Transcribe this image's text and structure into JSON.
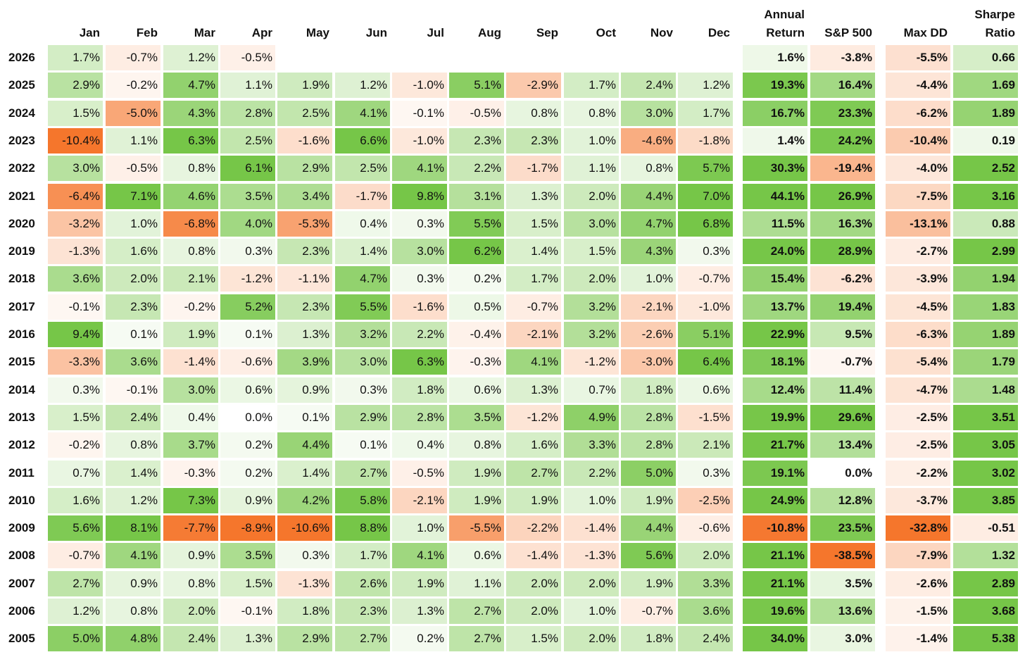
{
  "table": {
    "columns": [
      "Jan",
      "Feb",
      "Mar",
      "Apr",
      "May",
      "Jun",
      "Jul",
      "Aug",
      "Sep",
      "Oct",
      "Nov",
      "Dec",
      "Annual Return",
      "S&P 500",
      "Max DD",
      "Sharpe Ratio"
    ],
    "rows": [
      [
        "2026",
        "1.7%",
        "-0.7%",
        "1.2%",
        "-0.5%",
        null,
        null,
        null,
        null,
        null,
        null,
        null,
        null,
        "1.6%",
        "-3.8%",
        "-5.5%",
        "0.66"
      ],
      [
        "2025",
        "2.9%",
        "-0.2%",
        "4.7%",
        "1.1%",
        "1.9%",
        "1.2%",
        "-1.0%",
        "5.1%",
        "-2.9%",
        "1.7%",
        "2.4%",
        "1.2%",
        "19.3%",
        "16.4%",
        "-4.4%",
        "1.69"
      ],
      [
        "2024",
        "1.5%",
        "-5.0%",
        "4.3%",
        "2.8%",
        "2.5%",
        "4.1%",
        "-0.1%",
        "-0.5%",
        "0.8%",
        "0.8%",
        "3.0%",
        "1.7%",
        "16.7%",
        "23.3%",
        "-6.2%",
        "1.89"
      ],
      [
        "2023",
        "-10.4%",
        "1.1%",
        "6.3%",
        "2.5%",
        "-1.6%",
        "6.6%",
        "-1.0%",
        "2.3%",
        "2.3%",
        "1.0%",
        "-4.6%",
        "-1.8%",
        "1.4%",
        "24.2%",
        "-10.4%",
        "0.19"
      ],
      [
        "2022",
        "3.0%",
        "-0.5%",
        "0.8%",
        "6.1%",
        "2.9%",
        "2.5%",
        "4.1%",
        "2.2%",
        "-1.7%",
        "1.1%",
        "0.8%",
        "5.7%",
        "30.3%",
        "-19.4%",
        "-4.0%",
        "2.52"
      ],
      [
        "2021",
        "-6.4%",
        "7.1%",
        "4.6%",
        "3.5%",
        "3.4%",
        "-1.7%",
        "9.8%",
        "3.1%",
        "1.3%",
        "2.0%",
        "4.4%",
        "7.0%",
        "44.1%",
        "26.9%",
        "-7.5%",
        "3.16"
      ],
      [
        "2020",
        "-3.2%",
        "1.0%",
        "-6.8%",
        "4.0%",
        "-5.3%",
        "0.4%",
        "0.3%",
        "5.5%",
        "1.5%",
        "3.0%",
        "4.7%",
        "6.8%",
        "11.5%",
        "16.3%",
        "-13.1%",
        "0.88"
      ],
      [
        "2019",
        "-1.3%",
        "1.6%",
        "0.8%",
        "0.3%",
        "2.3%",
        "1.4%",
        "3.0%",
        "6.2%",
        "1.4%",
        "1.5%",
        "4.3%",
        "0.3%",
        "24.0%",
        "28.9%",
        "-2.7%",
        "2.99"
      ],
      [
        "2018",
        "3.6%",
        "2.0%",
        "2.1%",
        "-1.2%",
        "-1.1%",
        "4.7%",
        "0.3%",
        "0.2%",
        "1.7%",
        "2.0%",
        "1.0%",
        "-0.7%",
        "15.4%",
        "-6.2%",
        "-3.9%",
        "1.94"
      ],
      [
        "2017",
        "-0.1%",
        "2.3%",
        "-0.2%",
        "5.2%",
        "2.3%",
        "5.5%",
        "-1.6%",
        "0.5%",
        "-0.7%",
        "3.2%",
        "-2.1%",
        "-1.0%",
        "13.7%",
        "19.4%",
        "-4.5%",
        "1.83"
      ],
      [
        "2016",
        "9.4%",
        "0.1%",
        "1.9%",
        "0.1%",
        "1.3%",
        "3.2%",
        "2.2%",
        "-0.4%",
        "-2.1%",
        "3.2%",
        "-2.6%",
        "5.1%",
        "22.9%",
        "9.5%",
        "-6.3%",
        "1.89"
      ],
      [
        "2015",
        "-3.3%",
        "3.6%",
        "-1.4%",
        "-0.6%",
        "3.9%",
        "3.0%",
        "6.3%",
        "-0.3%",
        "4.1%",
        "-1.2%",
        "-3.0%",
        "6.4%",
        "18.1%",
        "-0.7%",
        "-5.4%",
        "1.79"
      ],
      [
        "2014",
        "0.3%",
        "-0.1%",
        "3.0%",
        "0.6%",
        "0.9%",
        "0.3%",
        "1.8%",
        "0.6%",
        "1.3%",
        "0.7%",
        "1.8%",
        "0.6%",
        "12.4%",
        "11.4%",
        "-4.7%",
        "1.48"
      ],
      [
        "2013",
        "1.5%",
        "2.4%",
        "0.4%",
        "0.0%",
        "0.1%",
        "2.9%",
        "2.8%",
        "3.5%",
        "-1.2%",
        "4.9%",
        "2.8%",
        "-1.5%",
        "19.9%",
        "29.6%",
        "-2.5%",
        "3.51"
      ],
      [
        "2012",
        "-0.2%",
        "0.8%",
        "3.7%",
        "0.2%",
        "4.4%",
        "0.1%",
        "0.4%",
        "0.8%",
        "1.6%",
        "3.3%",
        "2.8%",
        "2.1%",
        "21.7%",
        "13.4%",
        "-2.5%",
        "3.05"
      ],
      [
        "2011",
        "0.7%",
        "1.4%",
        "-0.3%",
        "0.2%",
        "1.4%",
        "2.7%",
        "-0.5%",
        "1.9%",
        "2.7%",
        "2.2%",
        "5.0%",
        "0.3%",
        "19.1%",
        "0.0%",
        "-2.2%",
        "3.02"
      ],
      [
        "2010",
        "1.6%",
        "1.2%",
        "7.3%",
        "0.9%",
        "4.2%",
        "5.8%",
        "-2.1%",
        "1.9%",
        "1.9%",
        "1.0%",
        "1.9%",
        "-2.5%",
        "24.9%",
        "12.8%",
        "-3.7%",
        "3.85"
      ],
      [
        "2009",
        "5.6%",
        "8.1%",
        "-7.7%",
        "-8.9%",
        "-10.6%",
        "8.8%",
        "1.0%",
        "-5.5%",
        "-2.2%",
        "-1.4%",
        "4.4%",
        "-0.6%",
        "-10.8%",
        "23.5%",
        "-32.8%",
        "-0.51"
      ],
      [
        "2008",
        "-0.7%",
        "4.1%",
        "0.9%",
        "3.5%",
        "0.3%",
        "1.7%",
        "4.1%",
        "0.6%",
        "-1.4%",
        "-1.3%",
        "5.6%",
        "2.0%",
        "21.1%",
        "-38.5%",
        "-7.9%",
        "1.32"
      ],
      [
        "2007",
        "2.7%",
        "0.9%",
        "0.8%",
        "1.5%",
        "-1.3%",
        "2.6%",
        "1.9%",
        "1.1%",
        "2.0%",
        "2.0%",
        "1.9%",
        "3.3%",
        "21.1%",
        "3.5%",
        "-2.6%",
        "2.89"
      ],
      [
        "2006",
        "1.2%",
        "0.8%",
        "2.0%",
        "-0.1%",
        "1.8%",
        "2.3%",
        "1.3%",
        "2.7%",
        "2.0%",
        "1.0%",
        "-0.7%",
        "3.6%",
        "19.6%",
        "13.6%",
        "-1.5%",
        "3.68"
      ],
      [
        "2005",
        "5.0%",
        "4.8%",
        "2.4%",
        "1.3%",
        "2.9%",
        "2.7%",
        "0.2%",
        "2.7%",
        "1.5%",
        "2.0%",
        "1.8%",
        "2.4%",
        "34.0%",
        "3.0%",
        "-1.4%",
        "5.38"
      ]
    ]
  }
}
